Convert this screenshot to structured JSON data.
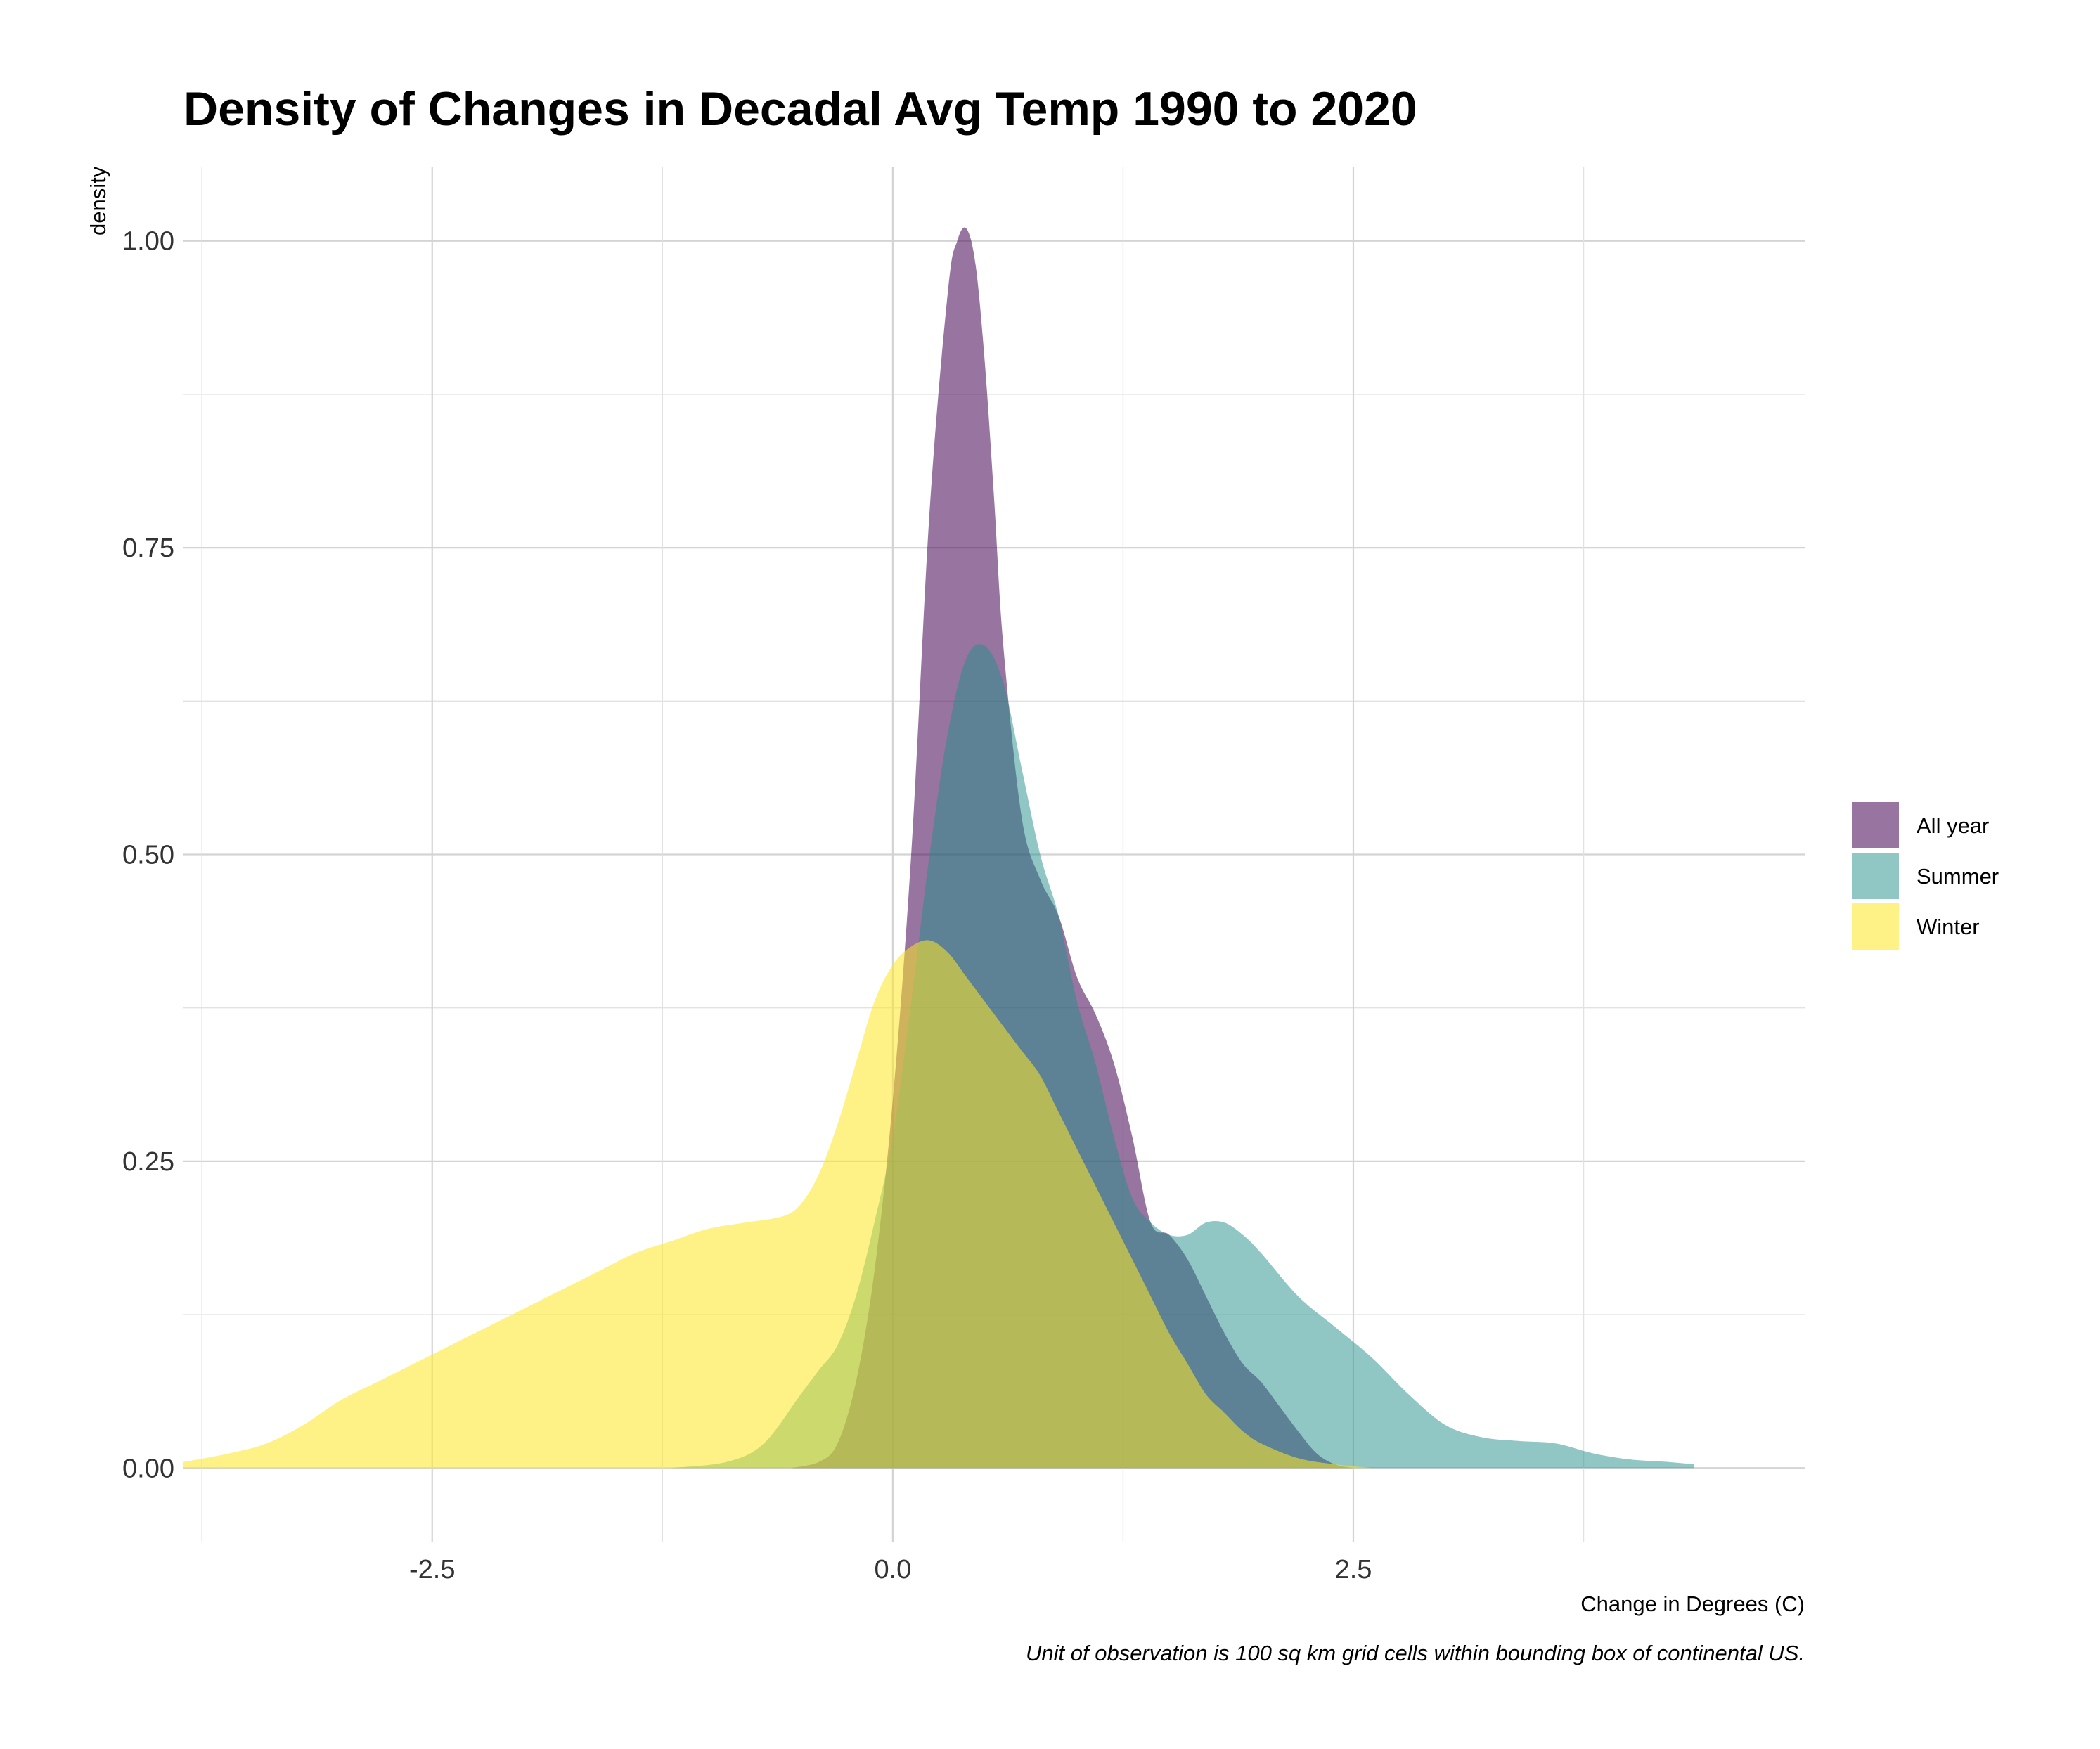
{
  "chart_data": {
    "type": "area",
    "title": "Density of Changes in Decadal Avg Temp 1990 to 2020",
    "xlabel": "Change in Degrees (C)",
    "ylabel": "density",
    "caption": "Unit of observation is 100 sq km grid cells within bounding box of continental US.",
    "xlim": [
      -3.85,
      4.95
    ],
    "ylim": [
      -0.06,
      1.06
    ],
    "x_ticks": [
      -2.5,
      0.0,
      2.5
    ],
    "x_tick_labels": [
      "-2.5",
      "0.0",
      "2.5"
    ],
    "y_ticks": [
      0.0,
      0.25,
      0.5,
      0.75,
      1.0
    ],
    "y_tick_labels": [
      "0.00",
      "0.25",
      "0.50",
      "0.75",
      "1.00"
    ],
    "grid": true,
    "legend_position": "right",
    "series": [
      {
        "name": "All year",
        "color": "#440154",
        "opacity": 0.55,
        "x": [
          -0.55,
          -0.4,
          -0.3,
          -0.2,
          -0.1,
          0.0,
          0.1,
          0.2,
          0.3,
          0.35,
          0.4,
          0.45,
          0.5,
          0.55,
          0.6,
          0.7,
          0.8,
          0.9,
          1.0,
          1.1,
          1.2,
          1.3,
          1.4,
          1.5,
          1.6,
          1.7,
          1.8,
          1.9,
          2.0,
          2.1,
          2.2,
          2.3,
          2.4,
          2.5
        ],
        "y": [
          0.0,
          0.005,
          0.02,
          0.07,
          0.16,
          0.3,
          0.5,
          0.78,
          0.96,
          1.0,
          1.01,
          0.98,
          0.9,
          0.79,
          0.67,
          0.53,
          0.48,
          0.45,
          0.4,
          0.37,
          0.33,
          0.27,
          0.2,
          0.19,
          0.17,
          0.14,
          0.11,
          0.085,
          0.07,
          0.05,
          0.03,
          0.012,
          0.003,
          0.0
        ]
      },
      {
        "name": "Summer",
        "color": "#21908C",
        "opacity": 0.5,
        "x": [
          -1.2,
          -0.9,
          -0.7,
          -0.5,
          -0.4,
          -0.3,
          -0.2,
          -0.1,
          0.0,
          0.1,
          0.2,
          0.3,
          0.4,
          0.5,
          0.6,
          0.7,
          0.8,
          0.9,
          1.0,
          1.1,
          1.2,
          1.3,
          1.4,
          1.5,
          1.6,
          1.7,
          1.8,
          1.9,
          2.0,
          2.2,
          2.4,
          2.6,
          2.8,
          3.0,
          3.2,
          3.4,
          3.6,
          3.8,
          4.0,
          4.2,
          4.35
        ],
        "y": [
          0.0,
          0.005,
          0.02,
          0.06,
          0.08,
          0.1,
          0.14,
          0.2,
          0.27,
          0.38,
          0.5,
          0.6,
          0.66,
          0.67,
          0.64,
          0.57,
          0.5,
          0.45,
          0.38,
          0.33,
          0.27,
          0.22,
          0.2,
          0.19,
          0.19,
          0.2,
          0.2,
          0.19,
          0.175,
          0.14,
          0.115,
          0.09,
          0.06,
          0.035,
          0.025,
          0.022,
          0.02,
          0.012,
          0.007,
          0.005,
          0.003
        ]
      },
      {
        "name": "Winter",
        "color": "#FDE725",
        "opacity": 0.55,
        "x": [
          -3.85,
          -3.6,
          -3.4,
          -3.2,
          -3.0,
          -2.8,
          -2.6,
          -2.4,
          -2.2,
          -2.0,
          -1.8,
          -1.6,
          -1.4,
          -1.2,
          -1.0,
          -0.8,
          -0.6,
          -0.5,
          -0.4,
          -0.3,
          -0.2,
          -0.1,
          0.0,
          0.1,
          0.2,
          0.3,
          0.4,
          0.5,
          0.6,
          0.7,
          0.8,
          0.9,
          1.0,
          1.1,
          1.2,
          1.3,
          1.4,
          1.5,
          1.6,
          1.7,
          1.8,
          1.9,
          2.0,
          2.2,
          2.4,
          2.6
        ],
        "y": [
          0.005,
          0.012,
          0.02,
          0.035,
          0.055,
          0.07,
          0.085,
          0.1,
          0.115,
          0.13,
          0.145,
          0.16,
          0.175,
          0.185,
          0.195,
          0.2,
          0.205,
          0.215,
          0.24,
          0.28,
          0.33,
          0.38,
          0.41,
          0.425,
          0.43,
          0.42,
          0.4,
          0.38,
          0.36,
          0.34,
          0.32,
          0.29,
          0.26,
          0.23,
          0.2,
          0.17,
          0.14,
          0.11,
          0.085,
          0.06,
          0.045,
          0.03,
          0.02,
          0.008,
          0.003,
          0.0
        ]
      }
    ]
  }
}
